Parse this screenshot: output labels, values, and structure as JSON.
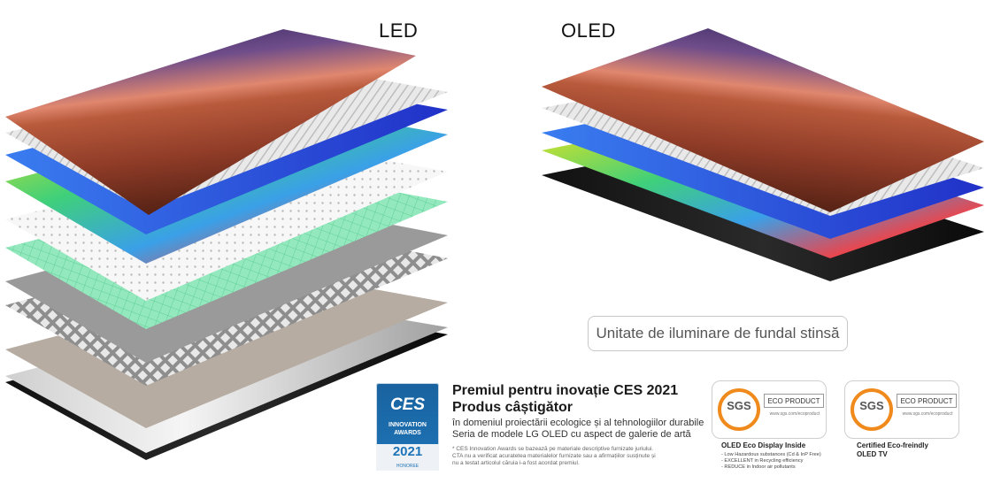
{
  "titles": {
    "led": "LED",
    "oled": "OLED"
  },
  "backlight_label": "Unitate de iluminare de fundal stinsă",
  "ces_badge": {
    "logo": "CES",
    "awards_line1": "INNOVATION",
    "awards_line2": "AWARDS",
    "year": "2021",
    "year_sub": "HONOREE"
  },
  "award": {
    "title_line1": "Premiul pentru inovație CES 2021",
    "title_line2": "Produs câștigător",
    "line1": "în domeniul proiectării ecologice și al tehnologiilor durabile",
    "line2": "Seria de modele LG OLED cu aspect de galerie de artă",
    "note_line1": "* CES Innovation Awards se bazează pe materiale descriptive furnizate juriului.",
    "note_line2": "CTA nu a verificat acuratetea materialelor furnizate sau a afirmațiilor susținute și",
    "note_line3": "nu a testat articolul căruia i-a fost acordat premiul."
  },
  "eco_labels": [
    {
      "sgs": "SGS",
      "label": "ECO PRODUCT",
      "url": "www.sgs.com/ecoproduct",
      "caption": "OLED Eco Display Inside",
      "bullets": [
        "- Low Hazardous substances (Cd & InP Free)",
        "- EXCELLENT in Recycling efficiency",
        "- REDUCE in Indoor air pollutants"
      ]
    },
    {
      "sgs": "SGS",
      "label": "ECO PRODUCT",
      "url": "www.sgs.com/ecoproduct",
      "caption_line1": "Certified Eco-freindly",
      "caption_line2": "OLED TV"
    }
  ],
  "colors": {
    "sgs_orange": "#f08a1c",
    "ces_blue": "#1e74b8",
    "sky_top": "#3a2b66",
    "sky_glow": "#d9776a",
    "sand": "#b0553a",
    "blue_layer": "#2a4bd8",
    "green_layer": "#7fe3b0"
  }
}
